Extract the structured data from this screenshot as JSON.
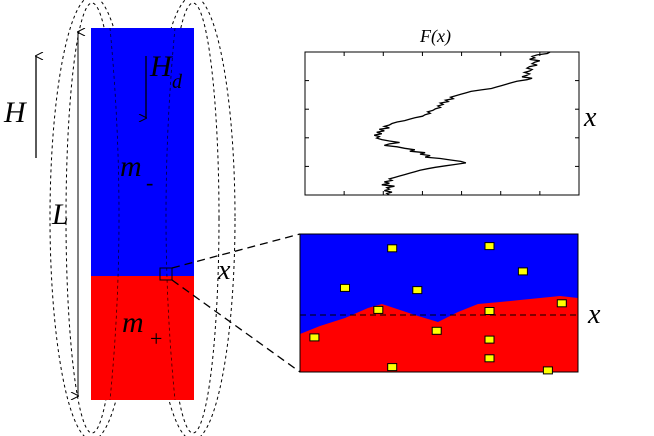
{
  "labels": {
    "H": "H",
    "Hd_main": "H",
    "Hd_sub": "d",
    "L": "L",
    "m_minus_main": "m",
    "m_minus_sub": "-",
    "m_plus_main": "m",
    "m_plus_sub": "+",
    "x_sample": "x",
    "x_plot": "x",
    "x_zoom": "x",
    "plot_title": "F(x)"
  },
  "colors": {
    "upper_domain": "#0000ff",
    "lower_domain": "#ff0000",
    "pinning_site_fill": "#ffff00",
    "pinning_site_stroke": "#000000",
    "line": "#000000"
  },
  "plot_curve": {
    "description_free": true,
    "x_values": [
      0.93,
      0.92,
      0.88,
      0.86,
      0.87,
      0.85,
      0.89,
      0.87,
      0.86,
      0.88,
      0.85,
      0.84,
      0.86,
      0.85,
      0.83,
      0.85,
      0.84,
      0.82,
      0.86,
      0.84,
      0.8,
      0.78,
      0.76,
      0.74,
      0.72,
      0.7,
      0.66,
      0.62,
      0.6,
      0.58,
      0.56,
      0.54,
      0.55,
      0.52,
      0.53,
      0.5,
      0.51,
      0.49,
      0.5,
      0.48,
      0.47,
      0.45,
      0.46,
      0.44,
      0.43,
      0.4,
      0.38,
      0.36,
      0.33,
      0.31,
      0.3,
      0.28,
      0.3,
      0.26,
      0.28,
      0.25,
      0.27,
      0.24,
      0.26,
      0.25,
      0.27,
      0.3,
      0.34,
      0.3,
      0.28,
      0.33,
      0.36,
      0.4,
      0.38,
      0.44,
      0.42,
      0.46,
      0.44,
      0.5,
      0.54,
      0.58,
      0.6,
      0.56,
      0.52,
      0.48,
      0.45,
      0.42,
      0.4,
      0.38,
      0.36,
      0.34,
      0.32,
      0.3,
      0.31,
      0.28,
      0.3,
      0.27,
      0.32,
      0.29,
      0.3,
      0.28,
      0.31,
      0.29,
      0.3
    ],
    "pinning_sites_normalized": [
      [
        0.33,
        0.13
      ],
      [
        0.68,
        0.11
      ],
      [
        0.8,
        0.34
      ],
      [
        0.16,
        0.49
      ],
      [
        0.42,
        0.51
      ],
      [
        0.28,
        0.69
      ],
      [
        0.68,
        0.7
      ],
      [
        0.94,
        0.63
      ],
      [
        0.05,
        0.94
      ],
      [
        0.49,
        0.88
      ],
      [
        0.68,
        0.96
      ],
      [
        0.33,
        1.21
      ],
      [
        0.68,
        1.13
      ],
      [
        0.89,
        1.24
      ]
    ]
  }
}
